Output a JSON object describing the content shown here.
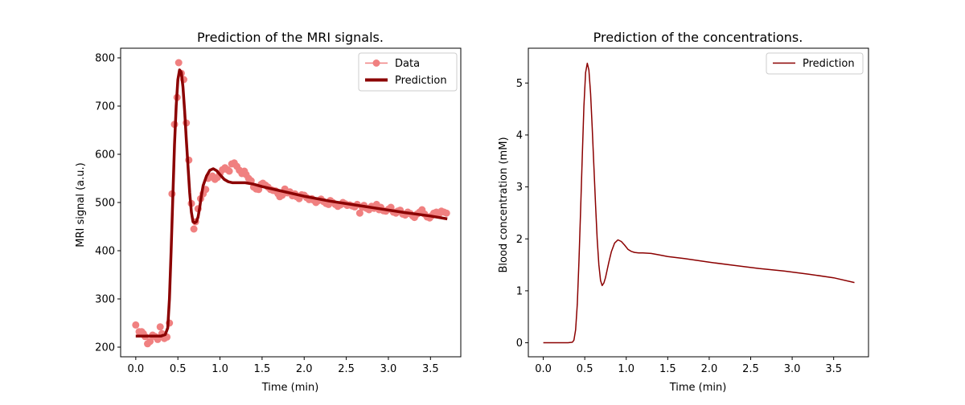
{
  "chart_data": [
    {
      "type": "line",
      "title": "Prediction of the MRI signals.",
      "xlabel": "Time (min)",
      "ylabel": "MRI signal (a.u.)",
      "xlim": [
        -0.18,
        3.86
      ],
      "ylim": [
        180,
        820
      ],
      "xticks": [
        0.0,
        0.5,
        1.0,
        1.5,
        2.0,
        2.5,
        3.0,
        3.5
      ],
      "xtick_labels": [
        "0.0",
        "0.5",
        "1.0",
        "1.5",
        "2.0",
        "2.5",
        "3.0",
        "3.5"
      ],
      "yticks": [
        200,
        300,
        400,
        500,
        600,
        700,
        800
      ],
      "ytick_labels": [
        "200",
        "300",
        "400",
        "500",
        "600",
        "700",
        "800"
      ],
      "legend": {
        "placement": "upper right",
        "entries": [
          "Data",
          "Prediction"
        ]
      },
      "series": [
        {
          "name": "Data",
          "kind": "scatter-line-marker",
          "color": "#f08080",
          "x": [
            0.0,
            0.04,
            0.07,
            0.09,
            0.11,
            0.14,
            0.17,
            0.2,
            0.23,
            0.26,
            0.29,
            0.31,
            0.34,
            0.37,
            0.4,
            0.43,
            0.46,
            0.49,
            0.51,
            0.54,
            0.57,
            0.6,
            0.63,
            0.66,
            0.69,
            0.71,
            0.74,
            0.77,
            0.8,
            0.83,
            0.86,
            0.89,
            0.91,
            0.94,
            0.97,
            1.0,
            1.03,
            1.06,
            1.09,
            1.11,
            1.14,
            1.17,
            1.2,
            1.23,
            1.26,
            1.29,
            1.31,
            1.34,
            1.37,
            1.4,
            1.43,
            1.46,
            1.49,
            1.51,
            1.54,
            1.57,
            1.6,
            1.63,
            1.66,
            1.69,
            1.71,
            1.74,
            1.77,
            1.8,
            1.83,
            1.86,
            1.89,
            1.91,
            1.94,
            1.97,
            2.0,
            2.03,
            2.06,
            2.09,
            2.11,
            2.14,
            2.17,
            2.2,
            2.23,
            2.26,
            2.29,
            2.31,
            2.34,
            2.37,
            2.4,
            2.43,
            2.46,
            2.49,
            2.51,
            2.54,
            2.57,
            2.6,
            2.63,
            2.66,
            2.69,
            2.71,
            2.74,
            2.77,
            2.8,
            2.83,
            2.86,
            2.89,
            2.91,
            2.94,
            2.97,
            3.0,
            3.03,
            3.06,
            3.09,
            3.11,
            3.14,
            3.17,
            3.2,
            3.23,
            3.26,
            3.29,
            3.31,
            3.34,
            3.37,
            3.4,
            3.43,
            3.46,
            3.49,
            3.51,
            3.54,
            3.57,
            3.6,
            3.63,
            3.66,
            3.69
          ],
          "y": [
            246,
            232,
            232,
            228,
            222,
            207,
            212,
            225,
            222,
            216,
            242,
            228,
            218,
            221,
            250,
            518,
            662,
            718,
            790,
            768,
            755,
            665,
            588,
            498,
            445,
            460,
            487,
            508,
            518,
            527,
            550,
            553,
            555,
            548,
            552,
            560,
            568,
            572,
            568,
            565,
            580,
            582,
            575,
            567,
            560,
            565,
            558,
            550,
            545,
            532,
            528,
            527,
            538,
            540,
            536,
            532,
            527,
            525,
            524,
            518,
            512,
            515,
            528,
            520,
            522,
            514,
            518,
            512,
            508,
            516,
            515,
            510,
            506,
            508,
            505,
            500,
            504,
            507,
            502,
            498,
            496,
            504,
            500,
            496,
            492,
            495,
            500,
            497,
            494,
            495,
            493,
            491,
            496,
            478,
            490,
            494,
            488,
            485,
            492,
            488,
            496,
            485,
            490,
            483,
            482,
            486,
            490,
            480,
            478,
            482,
            484,
            476,
            474,
            480,
            477,
            472,
            469,
            476,
            480,
            485,
            476,
            470,
            468,
            472,
            478,
            480,
            476,
            482,
            480,
            478
          ],
          "y_note": "approximate readings; every 3rd point of a denser sample shown"
        },
        {
          "name": "Prediction",
          "kind": "line",
          "color": "#8b0000",
          "x": [
            0.0,
            0.1,
            0.2,
            0.3,
            0.35,
            0.38,
            0.4,
            0.42,
            0.44,
            0.46,
            0.48,
            0.5,
            0.52,
            0.54,
            0.56,
            0.58,
            0.6,
            0.62,
            0.64,
            0.66,
            0.68,
            0.7,
            0.72,
            0.74,
            0.76,
            0.78,
            0.8,
            0.84,
            0.88,
            0.92,
            0.96,
            1.0,
            1.05,
            1.1,
            1.15,
            1.2,
            1.3,
            1.4,
            1.5,
            1.7,
            2.0,
            2.3,
            2.6,
            2.9,
            3.2,
            3.5,
            3.7
          ],
          "y": [
            223,
            223,
            223,
            223,
            226,
            240,
            300,
            400,
            510,
            620,
            700,
            755,
            775,
            770,
            740,
            690,
            630,
            575,
            520,
            480,
            460,
            458,
            460,
            470,
            490,
            515,
            535,
            555,
            567,
            570,
            566,
            558,
            548,
            543,
            541,
            541,
            541,
            538,
            533,
            525,
            513,
            503,
            495,
            487,
            479,
            472,
            466
          ]
        }
      ]
    },
    {
      "type": "line",
      "title": "Prediction of the concentrations.",
      "xlabel": "Time (min)",
      "ylabel": "Blood concentration (mM)",
      "xlim": [
        -0.18,
        3.92
      ],
      "ylim": [
        -0.27,
        5.67
      ],
      "xticks": [
        0.0,
        0.5,
        1.0,
        1.5,
        2.0,
        2.5,
        3.0,
        3.5
      ],
      "xtick_labels": [
        "0.0",
        "0.5",
        "1.0",
        "1.5",
        "2.0",
        "2.5",
        "3.0",
        "3.5"
      ],
      "yticks": [
        0,
        1,
        2,
        3,
        4,
        5
      ],
      "ytick_labels": [
        "0",
        "1",
        "2",
        "3",
        "4",
        "5"
      ],
      "legend": {
        "placement": "upper right",
        "entries": [
          "Prediction"
        ]
      },
      "series": [
        {
          "name": "Prediction",
          "color": "#8b0000",
          "x": [
            0.0,
            0.1,
            0.2,
            0.3,
            0.35,
            0.37,
            0.39,
            0.41,
            0.43,
            0.45,
            0.47,
            0.49,
            0.51,
            0.53,
            0.55,
            0.57,
            0.59,
            0.61,
            0.63,
            0.65,
            0.67,
            0.69,
            0.71,
            0.73,
            0.75,
            0.77,
            0.79,
            0.82,
            0.86,
            0.9,
            0.94,
            0.98,
            1.02,
            1.06,
            1.1,
            1.15,
            1.2,
            1.3,
            1.4,
            1.5,
            1.7,
            2.0,
            2.3,
            2.6,
            2.9,
            3.2,
            3.5,
            3.75
          ],
          "y": [
            0.0,
            0.0,
            0.0,
            0.0,
            0.01,
            0.05,
            0.25,
            0.75,
            1.55,
            2.55,
            3.6,
            4.55,
            5.2,
            5.38,
            5.25,
            4.8,
            4.15,
            3.4,
            2.65,
            2.0,
            1.5,
            1.2,
            1.1,
            1.15,
            1.25,
            1.4,
            1.55,
            1.75,
            1.92,
            1.98,
            1.95,
            1.88,
            1.8,
            1.76,
            1.74,
            1.73,
            1.73,
            1.72,
            1.69,
            1.66,
            1.62,
            1.55,
            1.49,
            1.43,
            1.38,
            1.32,
            1.25,
            1.16
          ]
        }
      ]
    }
  ]
}
